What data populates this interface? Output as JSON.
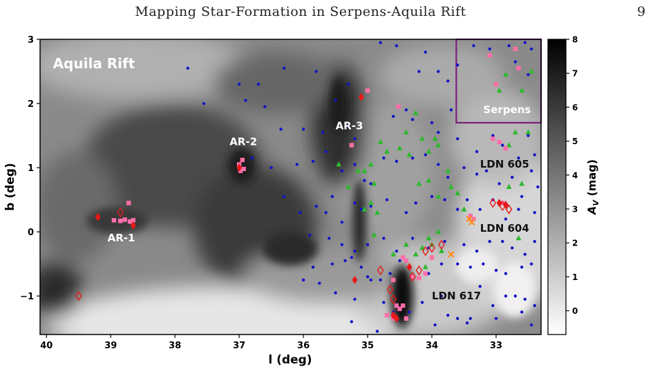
{
  "header": {
    "title": "Mapping Star-Formation in Serpens-Aquila Rift",
    "page_number": "9"
  },
  "chart_data": {
    "type": "scatter",
    "xlabel": "l (deg)",
    "ylabel": "b (deg)",
    "xlim": [
      40.1,
      32.3
    ],
    "ylim": [
      -1.6,
      3.0
    ],
    "x_ticks": [
      40,
      39,
      38,
      37,
      36,
      35,
      34,
      33
    ],
    "y_ticks": [
      -1,
      0,
      1,
      2,
      3
    ],
    "x_tick_labels": [
      "40",
      "39",
      "38",
      "37",
      "36",
      "35",
      "34",
      "33"
    ],
    "y_tick_labels": [
      "−1",
      "0",
      "1",
      "2",
      "3"
    ],
    "grid": false,
    "background": "grayscale extinction map (A_V)",
    "colorbar": {
      "label": "A_V (mag)",
      "label_main": "A",
      "label_sub": "V",
      "label_rest": " (mag)",
      "min": -0.7,
      "max": 8,
      "ticks": [
        0,
        1,
        2,
        3,
        4,
        5,
        6,
        7,
        8
      ],
      "tick_labels": [
        "0",
        "1",
        "2",
        "3",
        "4",
        "5",
        "6",
        "7",
        "8"
      ]
    },
    "annotations": [
      {
        "id": "aquila",
        "text": "Aquila Rift",
        "l": 39.9,
        "b": 2.55,
        "color": "#ffffff"
      },
      {
        "id": "serpens",
        "text": "Serpens",
        "l": 33.2,
        "b": 1.85,
        "color": "#ffffff"
      },
      {
        "id": "ar1",
        "text": "AR-1",
        "l": 39.05,
        "b": -0.15,
        "color": "#ffffff"
      },
      {
        "id": "ar2",
        "text": "AR-2",
        "l": 37.15,
        "b": 1.35,
        "color": "#ffffff"
      },
      {
        "id": "ar3",
        "text": "AR-3",
        "l": 35.5,
        "b": 1.6,
        "color": "#ffffff"
      },
      {
        "id": "ldn605",
        "text": "LDN 605",
        "l": 33.25,
        "b": 1.0,
        "color": "#111111"
      },
      {
        "id": "ldn604",
        "text": "LDN 604",
        "l": 33.25,
        "b": 0.0,
        "color": "#111111"
      },
      {
        "id": "ldn617",
        "text": "LDN 617",
        "l": 34.0,
        "b": -1.05,
        "color": "#111111"
      }
    ],
    "region_box": {
      "l_min": 32.3,
      "l_max": 33.62,
      "b_min": 1.7,
      "b_max": 3.0,
      "color": "#7b1f7b"
    },
    "colors": {
      "blue": "#1414c8",
      "green": "#2eb82e",
      "pink": "#ff6fa8",
      "red": "#e61919",
      "orange": "#ff8c1a"
    },
    "series": [
      {
        "marker": "dot",
        "color": "#1414c8",
        "points": [
          [
            37.8,
            2.55
          ],
          [
            37.0,
            2.3
          ],
          [
            36.7,
            2.3
          ],
          [
            36.3,
            2.55
          ],
          [
            35.8,
            2.5
          ],
          [
            35.3,
            2.3
          ],
          [
            34.8,
            2.95
          ],
          [
            34.55,
            2.9
          ],
          [
            34.1,
            2.8
          ],
          [
            34.2,
            2.5
          ],
          [
            33.9,
            2.5
          ],
          [
            33.75,
            2.35
          ],
          [
            33.6,
            2.6
          ],
          [
            33.35,
            2.9
          ],
          [
            33.1,
            2.85
          ],
          [
            32.8,
            2.9
          ],
          [
            32.55,
            2.95
          ],
          [
            32.45,
            2.85
          ],
          [
            32.7,
            2.65
          ],
          [
            32.5,
            2.45
          ],
          [
            37.55,
            2.0
          ],
          [
            36.9,
            2.05
          ],
          [
            36.6,
            1.95
          ],
          [
            36.35,
            1.6
          ],
          [
            36.0,
            1.6
          ],
          [
            35.7,
            1.55
          ],
          [
            35.5,
            2.05
          ],
          [
            35.3,
            1.65
          ],
          [
            35.2,
            1.45
          ],
          [
            34.6,
            1.8
          ],
          [
            34.4,
            1.9
          ],
          [
            34.3,
            1.75
          ],
          [
            34.0,
            1.7
          ],
          [
            33.7,
            1.9
          ],
          [
            33.9,
            1.55
          ],
          [
            33.6,
            1.45
          ],
          [
            33.3,
            1.25
          ],
          [
            33.05,
            1.5
          ],
          [
            32.9,
            1.35
          ],
          [
            32.65,
            1.15
          ],
          [
            32.5,
            1.5
          ],
          [
            32.4,
            1.2
          ],
          [
            36.8,
            1.15
          ],
          [
            36.5,
            1.0
          ],
          [
            36.1,
            1.05
          ],
          [
            35.85,
            1.1
          ],
          [
            35.65,
            1.25
          ],
          [
            35.4,
            0.95
          ],
          [
            35.2,
            1.05
          ],
          [
            35.05,
            0.8
          ],
          [
            34.95,
            0.75
          ],
          [
            34.75,
            1.15
          ],
          [
            34.55,
            1.1
          ],
          [
            34.3,
            1.15
          ],
          [
            34.1,
            1.2
          ],
          [
            33.9,
            1.05
          ],
          [
            33.75,
            0.85
          ],
          [
            33.5,
            1.0
          ],
          [
            33.3,
            0.9
          ],
          [
            33.15,
            0.95
          ],
          [
            32.95,
            0.75
          ],
          [
            32.75,
            0.85
          ],
          [
            32.6,
            0.55
          ],
          [
            32.45,
            0.95
          ],
          [
            32.35,
            0.7
          ],
          [
            36.3,
            0.55
          ],
          [
            36.05,
            0.3
          ],
          [
            35.8,
            0.4
          ],
          [
            35.65,
            0.3
          ],
          [
            35.55,
            0.55
          ],
          [
            35.4,
            0.15
          ],
          [
            35.2,
            0.45
          ],
          [
            35.1,
            0.35
          ],
          [
            34.95,
            0.4
          ],
          [
            34.7,
            0.5
          ],
          [
            34.4,
            0.3
          ],
          [
            34.25,
            0.45
          ],
          [
            34.0,
            0.55
          ],
          [
            33.8,
            0.5
          ],
          [
            33.6,
            0.35
          ],
          [
            33.45,
            0.5
          ],
          [
            33.25,
            0.35
          ],
          [
            33.05,
            0.5
          ],
          [
            32.85,
            0.2
          ],
          [
            32.65,
            0.35
          ],
          [
            32.4,
            0.3
          ],
          [
            35.9,
            -0.05
          ],
          [
            35.6,
            -0.1
          ],
          [
            35.4,
            -0.2
          ],
          [
            35.2,
            -0.3
          ],
          [
            35.0,
            -0.2
          ],
          [
            34.75,
            -0.1
          ],
          [
            34.55,
            -0.3
          ],
          [
            34.3,
            -0.1
          ],
          [
            34.05,
            -0.25
          ],
          [
            33.8,
            -0.15
          ],
          [
            33.5,
            -0.2
          ],
          [
            33.3,
            -0.3
          ],
          [
            33.1,
            -0.15
          ],
          [
            32.9,
            -0.15
          ],
          [
            32.75,
            -0.25
          ],
          [
            32.55,
            -0.35
          ],
          [
            32.4,
            -0.15
          ],
          [
            35.85,
            -0.55
          ],
          [
            35.55,
            -0.5
          ],
          [
            35.35,
            -0.45
          ],
          [
            35.25,
            -0.4
          ],
          [
            35.1,
            -0.55
          ],
          [
            35.0,
            -0.7
          ],
          [
            34.8,
            -0.75
          ],
          [
            34.65,
            -0.65
          ],
          [
            34.5,
            -0.45
          ],
          [
            34.05,
            -0.65
          ],
          [
            33.85,
            -0.5
          ],
          [
            33.6,
            -0.5
          ],
          [
            33.4,
            -0.55
          ],
          [
            33.2,
            -0.5
          ],
          [
            33.0,
            -0.6
          ],
          [
            32.85,
            -0.65
          ],
          [
            32.6,
            -0.55
          ],
          [
            32.45,
            -0.5
          ],
          [
            36.0,
            -0.75
          ],
          [
            35.75,
            -0.8
          ],
          [
            35.5,
            -0.95
          ],
          [
            35.2,
            -1.05
          ],
          [
            34.95,
            -0.75
          ],
          [
            34.75,
            -1.1
          ],
          [
            34.6,
            -1.25
          ],
          [
            34.35,
            -1.25
          ],
          [
            34.15,
            -1.1
          ],
          [
            33.85,
            -1.0
          ],
          [
            33.6,
            -1.35
          ],
          [
            33.4,
            -1.35
          ],
          [
            33.25,
            -0.85
          ],
          [
            33.05,
            -1.15
          ],
          [
            32.85,
            -1.0
          ],
          [
            32.7,
            -1.0
          ],
          [
            32.55,
            -1.05
          ],
          [
            32.4,
            -1.15
          ],
          [
            35.25,
            -1.4
          ],
          [
            34.85,
            -1.55
          ],
          [
            33.95,
            -1.45
          ],
          [
            33.75,
            -1.3
          ],
          [
            33.45,
            -1.42
          ],
          [
            33.0,
            -1.35
          ],
          [
            32.6,
            -1.25
          ],
          [
            32.45,
            -1.45
          ]
        ]
      },
      {
        "marker": "triangle",
        "color": "#2eb82e",
        "points": [
          [
            35.45,
            1.05
          ],
          [
            35.3,
            0.7
          ],
          [
            35.15,
            0.95
          ],
          [
            35.05,
            0.95
          ],
          [
            34.95,
            1.05
          ],
          [
            34.9,
            0.75
          ],
          [
            34.95,
            0.45
          ],
          [
            35.05,
            0.35
          ],
          [
            34.85,
            0.3
          ],
          [
            34.8,
            1.4
          ],
          [
            34.7,
            1.25
          ],
          [
            34.5,
            1.3
          ],
          [
            34.4,
            1.55
          ],
          [
            34.25,
            1.85
          ],
          [
            34.35,
            1.2
          ],
          [
            34.15,
            1.45
          ],
          [
            34.05,
            1.25
          ],
          [
            33.95,
            1.45
          ],
          [
            33.9,
            1.35
          ],
          [
            34.2,
            0.75
          ],
          [
            34.05,
            0.8
          ],
          [
            33.75,
            0.95
          ],
          [
            33.9,
            0.55
          ],
          [
            33.7,
            0.7
          ],
          [
            33.6,
            0.6
          ],
          [
            33.5,
            0.35
          ],
          [
            34.9,
            -0.05
          ],
          [
            34.6,
            -0.35
          ],
          [
            34.4,
            -0.2
          ],
          [
            34.25,
            -0.35
          ],
          [
            34.15,
            -0.25
          ],
          [
            34.0,
            -0.2
          ],
          [
            33.85,
            -0.3
          ],
          [
            34.05,
            -0.1
          ],
          [
            33.9,
            0.0
          ],
          [
            34.1,
            -0.55
          ],
          [
            32.95,
            2.2
          ],
          [
            32.85,
            2.45
          ],
          [
            32.6,
            2.2
          ],
          [
            32.45,
            2.5
          ],
          [
            32.7,
            1.55
          ],
          [
            32.5,
            1.55
          ],
          [
            32.8,
            1.35
          ],
          [
            32.6,
            0.75
          ],
          [
            32.8,
            0.7
          ],
          [
            32.65,
            -0.1
          ],
          [
            32.9,
            0.45
          ]
        ]
      },
      {
        "marker": "square",
        "color": "#ff6fa8",
        "points": [
          [
            38.95,
            0.18
          ],
          [
            38.85,
            0.17
          ],
          [
            38.78,
            0.19
          ],
          [
            38.7,
            0.16
          ],
          [
            38.65,
            0.18
          ],
          [
            38.72,
            0.45
          ],
          [
            37.0,
            1.05
          ],
          [
            36.95,
            1.12
          ],
          [
            36.93,
            0.98
          ],
          [
            36.98,
            0.95
          ],
          [
            35.25,
            1.35
          ],
          [
            35.0,
            2.2
          ],
          [
            34.52,
            1.95
          ],
          [
            34.6,
            -0.75
          ],
          [
            34.45,
            -0.4
          ],
          [
            34.4,
            -0.45
          ],
          [
            34.3,
            -0.7
          ],
          [
            34.2,
            -0.72
          ],
          [
            34.1,
            -0.65
          ],
          [
            34.0,
            -0.4
          ],
          [
            34.55,
            -1.15
          ],
          [
            34.5,
            -1.2
          ],
          [
            34.45,
            -1.15
          ],
          [
            34.4,
            -1.35
          ],
          [
            34.7,
            -1.3
          ],
          [
            34.6,
            -1.35
          ],
          [
            33.4,
            0.25
          ],
          [
            33.35,
            0.2
          ],
          [
            32.9,
            0.45
          ],
          [
            33.0,
            2.3
          ],
          [
            33.1,
            2.75
          ],
          [
            32.7,
            2.85
          ],
          [
            32.65,
            2.55
          ],
          [
            32.85,
            1.3
          ],
          [
            32.95,
            1.4
          ],
          [
            33.05,
            1.45
          ]
        ]
      },
      {
        "marker": "diamond-filled",
        "color": "#e61919",
        "points": [
          [
            39.2,
            0.23
          ],
          [
            38.65,
            0.1
          ],
          [
            37.0,
            1.0
          ],
          [
            35.1,
            2.1
          ],
          [
            35.2,
            -0.75
          ],
          [
            34.35,
            -0.55
          ],
          [
            34.6,
            -1.3
          ],
          [
            34.55,
            -1.35
          ],
          [
            32.95,
            0.45
          ],
          [
            32.85,
            0.42
          ]
        ]
      },
      {
        "marker": "diamond-open",
        "color": "#e61919",
        "points": [
          [
            39.5,
            -1.0
          ],
          [
            38.85,
            0.3
          ],
          [
            34.8,
            -0.6
          ],
          [
            34.65,
            -0.9
          ],
          [
            34.6,
            -1.05
          ],
          [
            34.3,
            -0.7
          ],
          [
            34.2,
            -0.6
          ],
          [
            34.1,
            -0.3
          ],
          [
            34.0,
            -0.25
          ],
          [
            33.85,
            -0.2
          ],
          [
            33.05,
            0.45
          ],
          [
            32.9,
            0.4
          ],
          [
            32.8,
            0.35
          ]
        ]
      },
      {
        "marker": "cross",
        "color": "#ff8c1a",
        "points": [
          [
            33.7,
            -0.35
          ],
          [
            33.42,
            0.2
          ],
          [
            33.38,
            0.15
          ]
        ]
      }
    ]
  }
}
